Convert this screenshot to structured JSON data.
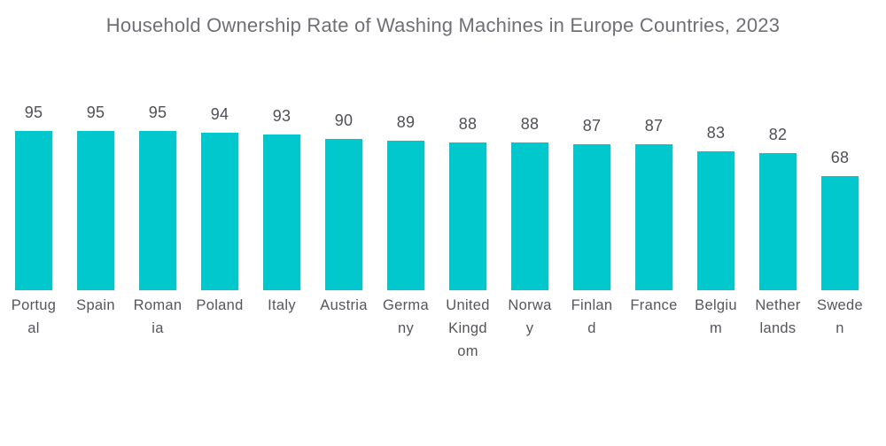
{
  "title": "Household Ownership Rate of Washing Machines in Europe Countries, 2023",
  "colors": {
    "bar": "#00c8cd",
    "title_text": "#6f7076",
    "value_text": "#4f5056",
    "category_text": "#55565c",
    "background": "#ffffff"
  },
  "chart_data": {
    "type": "bar",
    "title": "Household Ownership Rate of Washing Machines in Europe Countries, 2023",
    "categories": [
      "Portugal",
      "Spain",
      "Romania",
      "Poland",
      "Italy",
      "Austria",
      "Germany",
      "United Kingdom",
      "Norway",
      "Finland",
      "France",
      "Belgium",
      "Netherlands",
      "Sweden"
    ],
    "category_display": [
      "Portug\nal",
      "Spain",
      "Roman\nia",
      "Poland",
      "Italy",
      "Austria",
      "Germa\nny",
      "United\nKingd\nom",
      "Norwa\ny",
      "Finlan\nd",
      "France",
      "Belgiu\nm",
      "Nether\nlands",
      "Swede\nn"
    ],
    "values": [
      95,
      95,
      95,
      94,
      93,
      90,
      89,
      88,
      88,
      87,
      87,
      83,
      82,
      68
    ],
    "value_labels_position": "above bars",
    "xlabel": "",
    "ylabel": "",
    "ylim": [
      0,
      100
    ],
    "grid": false,
    "legend": false,
    "axes_visible": false
  }
}
